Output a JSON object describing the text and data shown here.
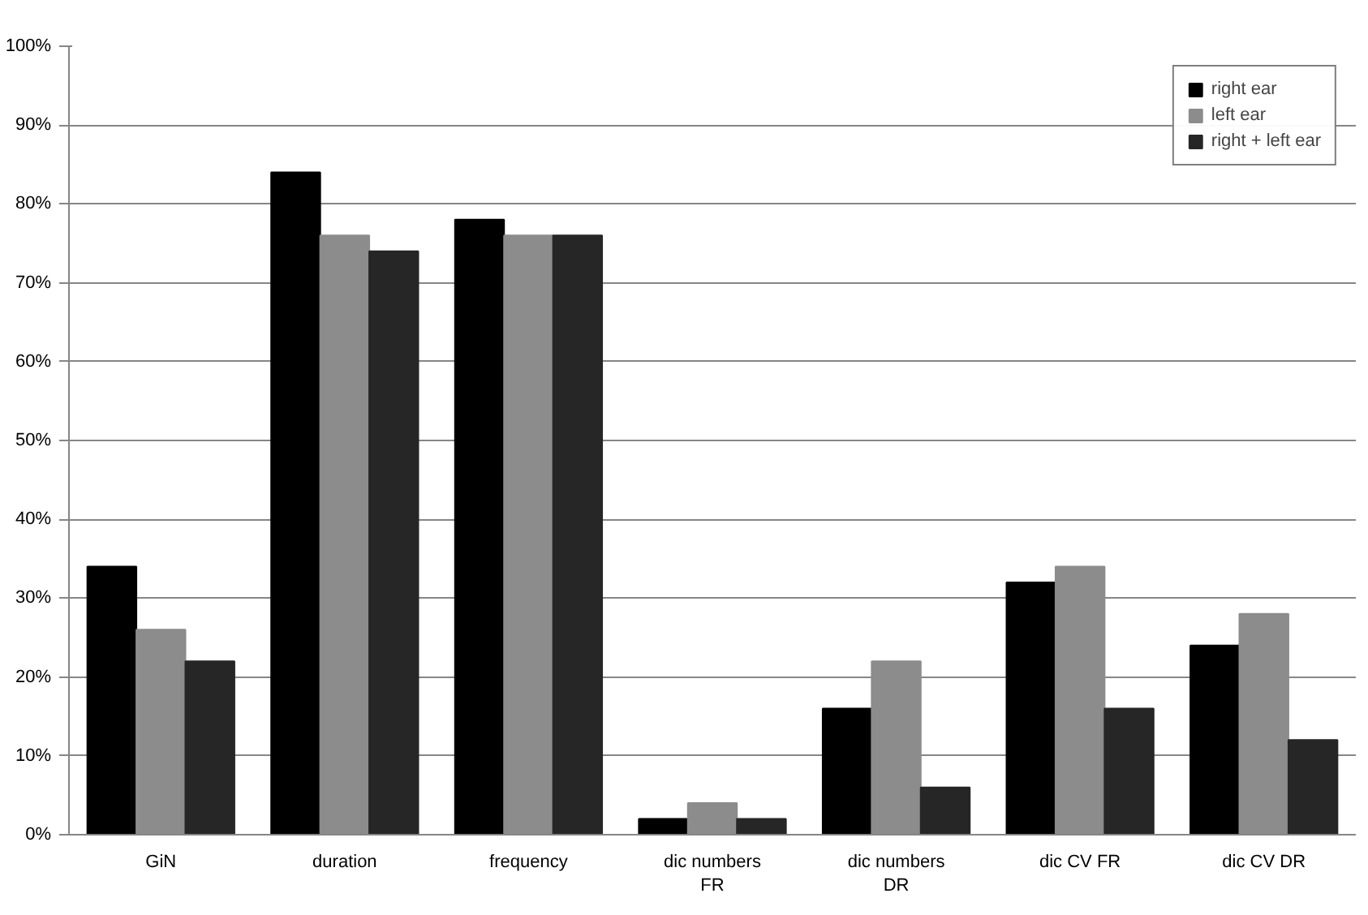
{
  "chart_data": {
    "type": "bar",
    "categories": [
      "GiN",
      "duration",
      "frequency",
      "dic numbers FR",
      "dic numbers DR",
      "dic CV FR",
      "dic CV DR"
    ],
    "series": [
      {
        "name": "right ear",
        "color": "#000000",
        "values": [
          34,
          84,
          78,
          2,
          16,
          32,
          24
        ]
      },
      {
        "name": "left ear",
        "color": "#8c8c8c",
        "values": [
          26,
          76,
          76,
          4,
          22,
          34,
          28
        ]
      },
      {
        "name": "right + left ear",
        "color": "#262626",
        "values": [
          22,
          74,
          76,
          2,
          6,
          16,
          12
        ]
      }
    ],
    "ylim": [
      0,
      100
    ],
    "yticks": [
      {
        "value": 0,
        "label": "0%"
      },
      {
        "value": 10,
        "label": "10%"
      },
      {
        "value": 20,
        "label": "20%"
      },
      {
        "value": 30,
        "label": "30%"
      },
      {
        "value": 40,
        "label": "40%"
      },
      {
        "value": 50,
        "label": "50%"
      },
      {
        "value": 60,
        "label": "60%"
      },
      {
        "value": 70,
        "label": "70%"
      },
      {
        "value": 80,
        "label": "80%"
      },
      {
        "value": 90,
        "label": "90%"
      },
      {
        "value": 100,
        "label": "100%"
      }
    ],
    "grid": "y",
    "legend": "top right"
  }
}
